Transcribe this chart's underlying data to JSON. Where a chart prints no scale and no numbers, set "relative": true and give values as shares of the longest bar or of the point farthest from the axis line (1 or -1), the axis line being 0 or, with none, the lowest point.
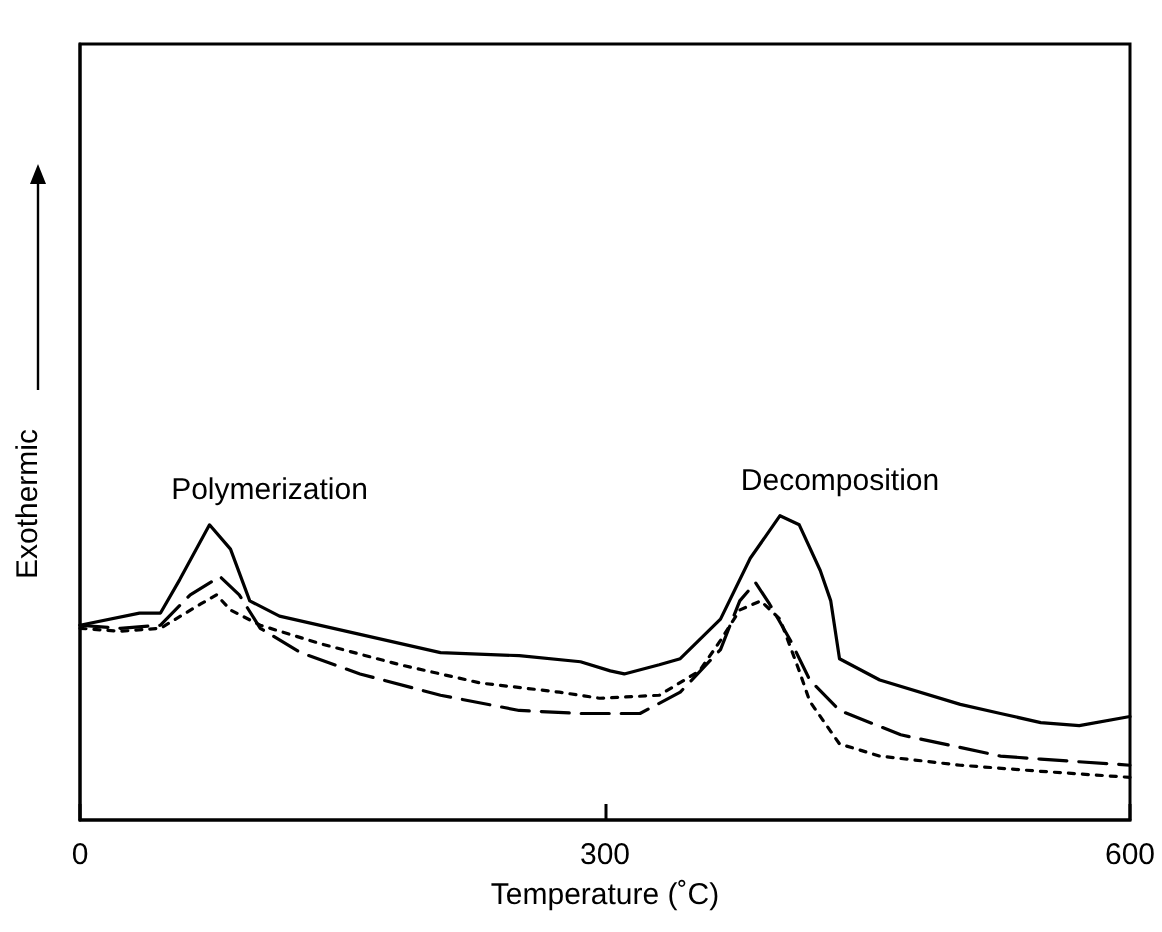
{
  "chart_data": {
    "type": "line",
    "relative": true,
    "xlabel": "Temperature (˚C)",
    "ylabel": "Exothermic",
    "xlim": [
      0,
      600
    ],
    "xticks": [
      0,
      300,
      600
    ],
    "grid": false,
    "marker": "none",
    "annotations": [
      {
        "text": "Polymerization",
        "x": 74,
        "y": 0.97
      },
      {
        "text": "Decomposition",
        "x": 400,
        "y": 1.0
      }
    ],
    "series": [
      {
        "color": "#000000",
        "line_style": "solid",
        "x": [
          0,
          34,
          46,
          57,
          74,
          86,
          97,
          114,
          160,
          206,
          251,
          286,
          303,
          311,
          331,
          343,
          366,
          383,
          400,
          411,
          423,
          429,
          434,
          457,
          503,
          526,
          549,
          571,
          600
        ],
        "values": [
          0.64,
          0.68,
          0.68,
          0.79,
          0.97,
          0.89,
          0.72,
          0.67,
          0.61,
          0.55,
          0.54,
          0.52,
          0.49,
          0.48,
          0.51,
          0.53,
          0.66,
          0.86,
          1.0,
          0.97,
          0.82,
          0.72,
          0.53,
          0.46,
          0.38,
          0.35,
          0.32,
          0.31,
          0.34
        ]
      },
      {
        "color": "#000000",
        "line_style": "dashed",
        "x": [
          0,
          23,
          46,
          63,
          80,
          91,
          103,
          126,
          160,
          206,
          251,
          286,
          320,
          343,
          366,
          377,
          386,
          394,
          406,
          417,
          434,
          469,
          526,
          549,
          600
        ],
        "values": [
          0.64,
          0.63,
          0.64,
          0.74,
          0.8,
          0.74,
          0.63,
          0.55,
          0.48,
          0.41,
          0.36,
          0.35,
          0.35,
          0.42,
          0.56,
          0.72,
          0.78,
          0.71,
          0.59,
          0.46,
          0.36,
          0.28,
          0.21,
          0.2,
          0.18
        ]
      },
      {
        "color": "#000000",
        "line_style": "dotted",
        "x": [
          0,
          23,
          46,
          69,
          78,
          86,
          103,
          137,
          183,
          229,
          274,
          297,
          331,
          354,
          366,
          377,
          389,
          400,
          411,
          417,
          434,
          457,
          503,
          549,
          600
        ],
        "values": [
          0.63,
          0.62,
          0.63,
          0.71,
          0.74,
          0.69,
          0.64,
          0.58,
          0.51,
          0.45,
          0.42,
          0.4,
          0.41,
          0.49,
          0.59,
          0.69,
          0.72,
          0.66,
          0.49,
          0.39,
          0.25,
          0.21,
          0.18,
          0.16,
          0.14
        ]
      }
    ]
  }
}
